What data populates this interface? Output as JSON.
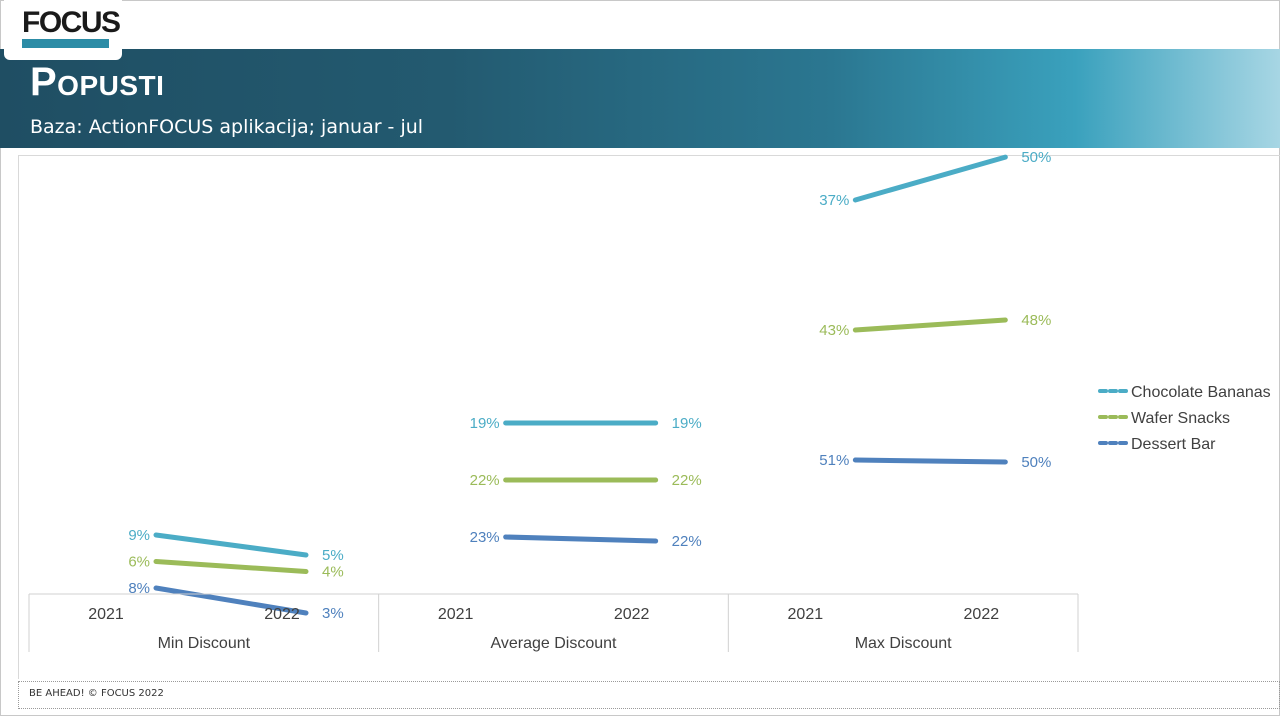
{
  "header": {
    "logo_text": "FOCUS",
    "title": "Popusti",
    "subtitle": "Baza: ActionFOCUS aplikacija;  januar - jul"
  },
  "footer": {
    "text": "BE AHEAD! © FOCUS 2022"
  },
  "colors": {
    "Chocolate Bananas": "#4bacc6",
    "Wafer Snacks": "#9bbb59",
    "Dessert Bar": "#4f81bd"
  },
  "chart_data": {
    "type": "line",
    "groups": [
      {
        "name": "Min Discount",
        "x": [
          "2021",
          "2022"
        ]
      },
      {
        "name": "Average Discount",
        "x": [
          "2021",
          "2022"
        ]
      },
      {
        "name": "Max Discount",
        "x": [
          "2021",
          "2022"
        ]
      }
    ],
    "series": [
      {
        "name": "Chocolate Bananas",
        "values": [
          [
            9,
            5
          ],
          [
            19,
            19
          ],
          [
            37,
            50
          ]
        ]
      },
      {
        "name": "Wafer Snacks",
        "values": [
          [
            6,
            4
          ],
          [
            22,
            22
          ],
          [
            43,
            48
          ]
        ]
      },
      {
        "name": "Dessert Bar",
        "values": [
          [
            8,
            3
          ],
          [
            23,
            22
          ],
          [
            51,
            50
          ]
        ]
      }
    ],
    "value_suffix": "%",
    "legend_position": "right",
    "grid": false
  }
}
